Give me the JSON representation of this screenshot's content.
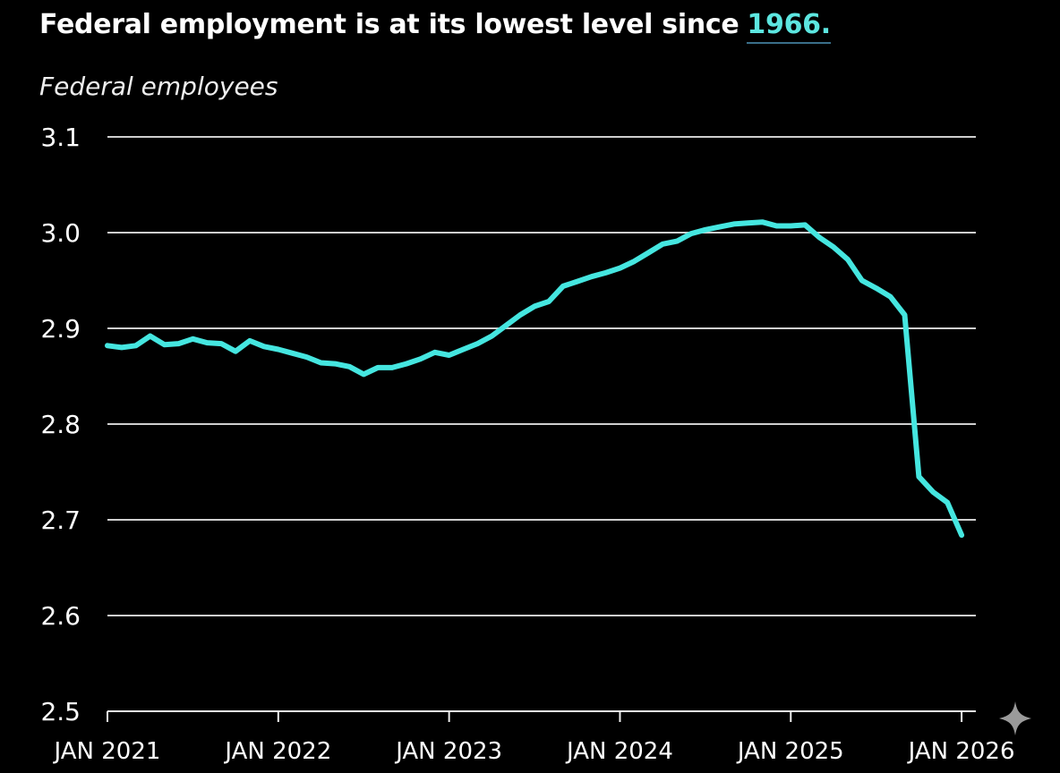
{
  "chart_data": {
    "type": "line",
    "title": "Federal employment is at its lowest level since",
    "title_highlight": "1966.",
    "y_label": "Federal employees",
    "color": "#45e6e0",
    "grid": true,
    "x": [
      "2021-01",
      "2021-02",
      "2021-03",
      "2021-04",
      "2021-05",
      "2021-06",
      "2021-07",
      "2021-08",
      "2021-09",
      "2021-10",
      "2021-11",
      "2021-12",
      "2022-01",
      "2022-02",
      "2022-03",
      "2022-04",
      "2022-05",
      "2022-06",
      "2022-07",
      "2022-08",
      "2022-09",
      "2022-10",
      "2022-11",
      "2022-12",
      "2023-01",
      "2023-02",
      "2023-03",
      "2023-04",
      "2023-05",
      "2023-06",
      "2023-07",
      "2023-08",
      "2023-09",
      "2023-10",
      "2023-11",
      "2023-12",
      "2024-01",
      "2024-02",
      "2024-03",
      "2024-04",
      "2024-05",
      "2024-06",
      "2024-07",
      "2024-08",
      "2024-09",
      "2024-10",
      "2024-11",
      "2024-12",
      "2025-01",
      "2025-02",
      "2025-03",
      "2025-04",
      "2025-05",
      "2025-06",
      "2025-07",
      "2025-08",
      "2025-09",
      "2025-10",
      "2025-11",
      "2025-12",
      "2026-01"
    ],
    "values": [
      2.882,
      2.88,
      2.882,
      2.892,
      2.883,
      2.884,
      2.889,
      2.885,
      2.884,
      2.876,
      2.887,
      2.881,
      2.878,
      2.874,
      2.87,
      2.864,
      2.863,
      2.86,
      2.852,
      2.859,
      2.859,
      2.863,
      2.868,
      2.875,
      2.872,
      2.878,
      2.884,
      2.892,
      2.903,
      2.914,
      2.923,
      2.928,
      2.944,
      2.949,
      2.954,
      2.958,
      2.963,
      2.97,
      2.979,
      2.988,
      2.991,
      2.999,
      3.003,
      3.006,
      3.009,
      3.01,
      3.011,
      3.007,
      3.007,
      3.008,
      2.995,
      2.985,
      2.972,
      2.95,
      2.942,
      2.933,
      2.914,
      2.745,
      2.729,
      2.718,
      2.684
    ],
    "xlim": [
      "2021-01",
      "2026-02"
    ],
    "xticks": [
      {
        "value": "2021-01",
        "label": "JAN 2021"
      },
      {
        "value": "2022-01",
        "label": "JAN 2022"
      },
      {
        "value": "2023-01",
        "label": "JAN 2023"
      },
      {
        "value": "2024-01",
        "label": "JAN 2024"
      },
      {
        "value": "2025-01",
        "label": "JAN 2025"
      },
      {
        "value": "2026-01",
        "label": "JAN 2026"
      }
    ],
    "ylim": [
      2.5,
      3.1
    ],
    "yticks": [
      2.5,
      2.6,
      2.7,
      2.8,
      2.9,
      {
        "value": 3,
        "label": "3.0"
      },
      3.1
    ]
  }
}
